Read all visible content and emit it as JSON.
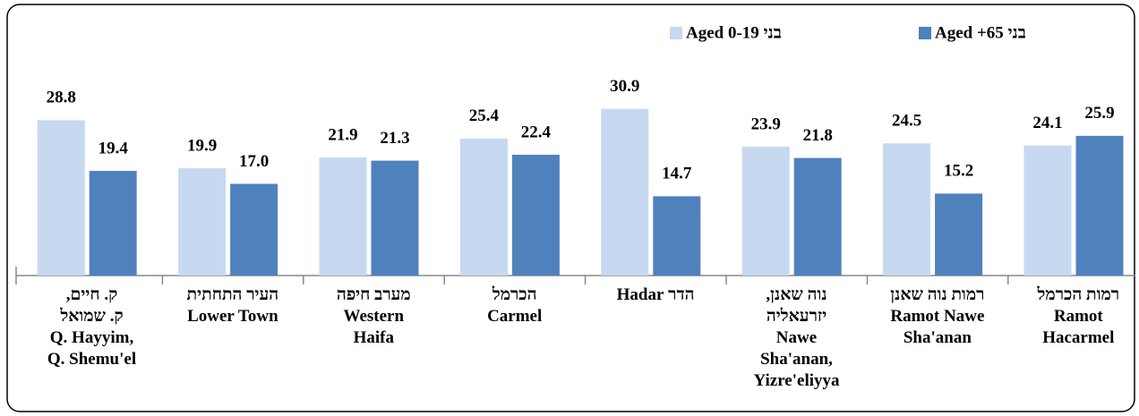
{
  "chart_data": {
    "type": "bar",
    "categories": [
      "ק. חיים,\nק. שמואל\nQ. Hayyim,\nQ. Shemu'el",
      "העיר התחתית\nLower Town",
      "מערב חיפה\nWestern\nHaifa",
      "הכרמל\nCarmel",
      "הדר Hadar",
      "נוה שאנן,\nיזרעאליה\nNawe\nSha'anan,\nYizre'eliyya",
      "רמות נוה שאנן\nRamot Nawe\nSha'anan",
      "רמות הכרמל\nRamot\nHacarmel"
    ],
    "series": [
      {
        "name": "Aged 0-19 בני",
        "color": "#c6d9f1",
        "values": [
          28.8,
          19.9,
          21.9,
          25.4,
          30.9,
          23.9,
          24.5,
          24.1
        ],
        "value_labels": [
          "28.8",
          "19.9",
          "21.9",
          "25.4",
          "30.9",
          "23.9",
          "24.5",
          "24.1"
        ]
      },
      {
        "name": "Aged +65 בני",
        "color": "#4f81bd",
        "values": [
          19.4,
          17.0,
          21.3,
          22.4,
          14.7,
          21.8,
          15.2,
          25.9
        ],
        "value_labels": [
          "19.4",
          "17.0",
          "21.3",
          "22.4",
          "14.7",
          "21.8",
          "15.2",
          "25.9"
        ]
      }
    ],
    "ylim": [
      0,
      35
    ]
  }
}
